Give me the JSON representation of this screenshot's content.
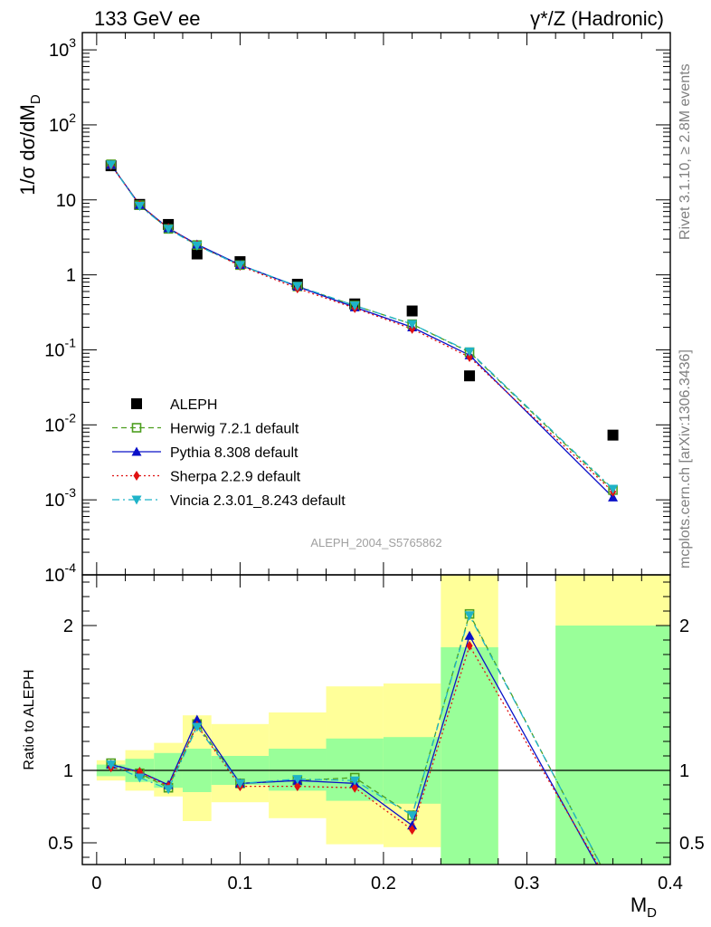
{
  "header": {
    "left": "133 GeV ee",
    "right": "γ*/Z (Hadronic)"
  },
  "side": {
    "rivet": "Rivet 3.1.10, ≥ 2.8M events",
    "mcplots": "mcplots.cern.ch [arXiv:1306.3436]"
  },
  "watermark": "ALEPH_2004_S5765862",
  "chart_data": [
    {
      "type": "scatter",
      "panel": "main",
      "ylabel": "1/σ  dσ/dM_D",
      "yscale": "log",
      "ylim": [
        0.0001,
        1700
      ],
      "xlim": [
        -0.01,
        0.4
      ],
      "ytick_labels": [
        "10^-4",
        "10^-3",
        "10^-2",
        "10^-1",
        "1",
        "10",
        "10^2",
        "10^3"
      ],
      "x": [
        0.01,
        0.03,
        0.05,
        0.07,
        0.1,
        0.14,
        0.18,
        0.22,
        0.26,
        0.36
      ],
      "series": [
        {
          "name": "ALEPH",
          "color": "#000000",
          "marker": "filled-square",
          "values": [
            28.5,
            8.7,
            4.7,
            1.9,
            1.5,
            0.75,
            0.41,
            0.33,
            0.045,
            0.0073
          ]
        },
        {
          "name": "Herwig 7.2.1 default",
          "color": "#4d9e1f",
          "marker": "open-square",
          "line": "dashed",
          "values": [
            29.8,
            8.5,
            4.1,
            2.5,
            1.35,
            0.7,
            0.39,
            0.22,
            0.093,
            0.00135
          ]
        },
        {
          "name": "Pythia 8.308 default",
          "color": "#0a10c8",
          "marker": "triangle-up",
          "line": "solid",
          "values": [
            29.4,
            8.6,
            4.2,
            2.55,
            1.36,
            0.7,
            0.37,
            0.2,
            0.085,
            0.00108
          ]
        },
        {
          "name": "Sherpa 2.2.9 default",
          "color": "#e01010",
          "marker": "diamond",
          "line": "dotted",
          "values": [
            29.0,
            8.6,
            4.2,
            2.5,
            1.32,
            0.66,
            0.36,
            0.19,
            0.08,
            0.00128
          ]
        },
        {
          "name": "Vincia 2.3.01_8.243 default",
          "color": "#1fb3c8",
          "marker": "triangle-down",
          "line": "dash-dot",
          "values": [
            29.5,
            8.3,
            4.1,
            2.45,
            1.35,
            0.71,
            0.39,
            0.22,
            0.095,
            0.0014
          ]
        }
      ]
    },
    {
      "type": "line",
      "panel": "ratio",
      "ylabel": "Ratio to ALEPH",
      "xlabel": "M_D",
      "ylim": [
        0.35,
        2.35
      ],
      "xlim": [
        -0.01,
        0.4
      ],
      "xtick_labels": [
        "0",
        "0.1",
        "0.2",
        "0.3",
        "0.4"
      ],
      "ytick_labels": [
        "0.5",
        "1",
        "2"
      ],
      "reference_line": 1,
      "bins": [
        {
          "lo": 0.0,
          "hi": 0.02,
          "stat": [
            0.96,
            1.04
          ],
          "total": [
            0.93,
            1.07
          ]
        },
        {
          "lo": 0.02,
          "hi": 0.04,
          "stat": [
            0.92,
            1.08
          ],
          "total": [
            0.86,
            1.14
          ]
        },
        {
          "lo": 0.04,
          "hi": 0.06,
          "stat": [
            0.88,
            1.12
          ],
          "total": [
            0.82,
            1.19
          ]
        },
        {
          "lo": 0.06,
          "hi": 0.08,
          "stat": [
            0.85,
            1.15
          ],
          "total": [
            0.65,
            1.38
          ]
        },
        {
          "lo": 0.08,
          "hi": 0.12,
          "stat": [
            0.9,
            1.1
          ],
          "total": [
            0.78,
            1.32
          ]
        },
        {
          "lo": 0.12,
          "hi": 0.16,
          "stat": [
            0.86,
            1.15
          ],
          "total": [
            0.67,
            1.4
          ]
        },
        {
          "lo": 0.16,
          "hi": 0.2,
          "stat": [
            0.79,
            1.22
          ],
          "total": [
            0.49,
            1.58
          ]
        },
        {
          "lo": 0.2,
          "hi": 0.24,
          "stat": [
            0.77,
            1.23
          ],
          "total": [
            0.47,
            1.6
          ]
        },
        {
          "lo": 0.24,
          "hi": 0.28,
          "stat": [
            0.35,
            1.85
          ],
          "total": [
            0.35,
            2.35
          ]
        },
        {
          "lo": 0.32,
          "hi": 0.4,
          "stat": [
            0.35,
            2.0
          ],
          "total": [
            0.35,
            2.35
          ]
        }
      ],
      "x": [
        0.01,
        0.03,
        0.05,
        0.07,
        0.1,
        0.14,
        0.18,
        0.22,
        0.26,
        0.36
      ],
      "series": [
        {
          "name": "Herwig 7.2.1 default",
          "color": "#4d9e1f",
          "marker": "open-square",
          "line": "dashed",
          "values": [
            1.05,
            0.98,
            0.88,
            1.32,
            0.91,
            0.93,
            0.95,
            0.69,
            2.08,
            0.185
          ]
        },
        {
          "name": "Pythia 8.308 default",
          "color": "#0a10c8",
          "marker": "triangle-up",
          "line": "solid",
          "values": [
            1.04,
            0.99,
            0.9,
            1.35,
            0.91,
            0.93,
            0.91,
            0.62,
            1.93,
            0.148
          ]
        },
        {
          "name": "Sherpa 2.2.9 default",
          "color": "#e01010",
          "marker": "diamond",
          "line": "dotted",
          "values": [
            1.02,
            0.99,
            0.89,
            1.31,
            0.89,
            0.89,
            0.88,
            0.59,
            1.86,
            0.175
          ]
        },
        {
          "name": "Vincia 2.3.01_8.243 default",
          "color": "#1fb3c8",
          "marker": "triangle-down",
          "line": "dash-dot",
          "values": [
            1.04,
            0.95,
            0.87,
            1.3,
            0.91,
            0.94,
            0.93,
            0.69,
            2.07,
            0.19
          ]
        }
      ]
    }
  ]
}
